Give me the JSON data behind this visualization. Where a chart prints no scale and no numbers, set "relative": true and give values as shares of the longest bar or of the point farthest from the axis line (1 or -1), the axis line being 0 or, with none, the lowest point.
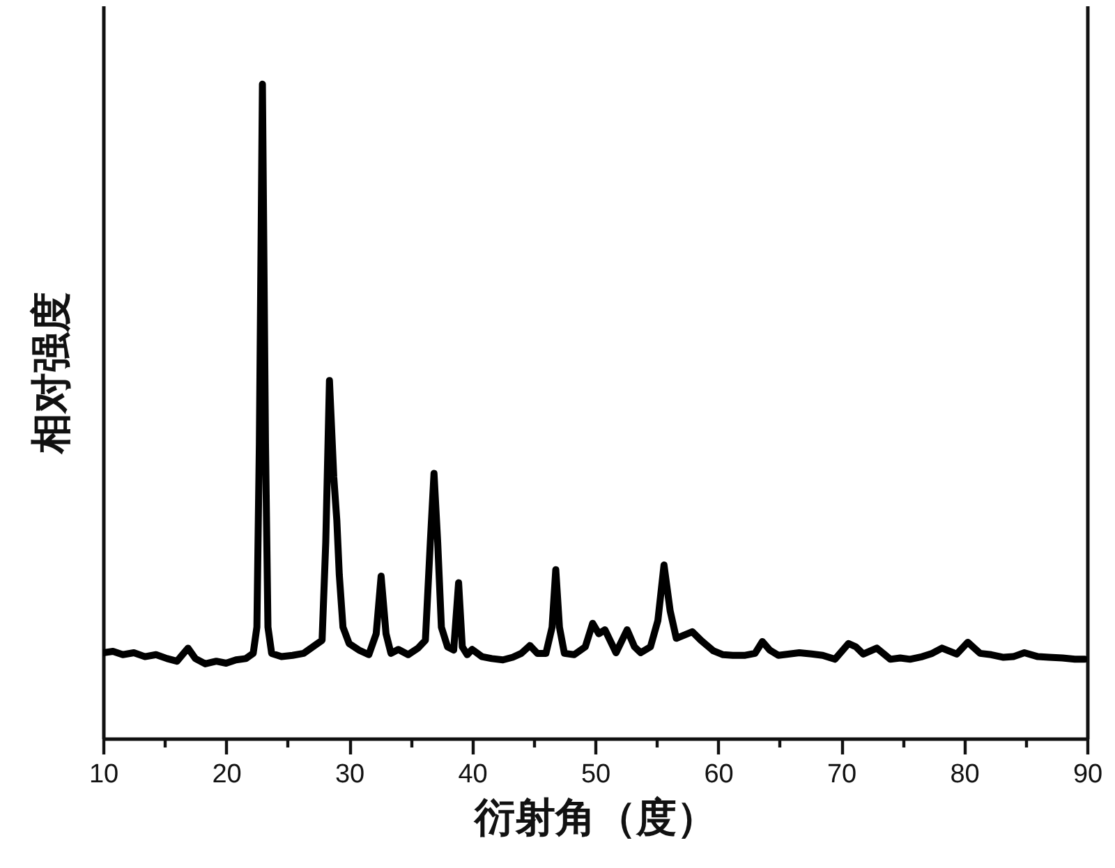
{
  "chart_data": {
    "type": "line",
    "relative": true,
    "xlabel": "衍射角（度）",
    "ylabel": "相对强度",
    "marker": "none",
    "line_style": "solid",
    "xlim": [
      10,
      90
    ],
    "xticks": [
      10,
      {
        "value": 15,
        "label": null
      },
      20,
      {
        "value": 25,
        "label": null
      },
      30,
      {
        "value": 35,
        "label": null
      },
      40,
      {
        "value": 45,
        "label": null
      },
      50,
      {
        "value": 55,
        "label": null
      },
      60,
      {
        "value": 65,
        "label": null
      },
      70,
      {
        "value": 75,
        "label": null
      },
      80,
      {
        "value": 85,
        "label": null
      },
      90
    ],
    "x": [
      10.0,
      10.8,
      11.6,
      12.5,
      13.4,
      14.3,
      15.2,
      16.0,
      16.9,
      17.5,
      18.3,
      19.2,
      20.0,
      20.8,
      21.6,
      22.2,
      22.5,
      22.7,
      22.95,
      23.2,
      23.4,
      23.7,
      24.5,
      25.4,
      26.3,
      27.2,
      27.8,
      28.1,
      28.4,
      28.75,
      29.0,
      29.2,
      29.5,
      30.0,
      30.8,
      31.6,
      32.2,
      32.6,
      33.0,
      33.4,
      34.0,
      34.8,
      35.6,
      36.2,
      36.6,
      36.9,
      37.2,
      37.5,
      38.0,
      38.5,
      38.9,
      39.2,
      39.6,
      40.0,
      40.8,
      41.6,
      42.5,
      43.3,
      44.0,
      44.7,
      45.3,
      46.0,
      46.5,
      46.8,
      47.1,
      47.5,
      48.3,
      49.2,
      49.8,
      50.3,
      50.8,
      51.7,
      52.6,
      53.2,
      53.7,
      54.5,
      55.1,
      55.6,
      56.1,
      56.6,
      57.9,
      58.6,
      59.6,
      60.4,
      61.2,
      62.2,
      63.0,
      63.6,
      64.2,
      64.9,
      65.8,
      66.6,
      67.6,
      68.5,
      69.5,
      70.6,
      71.2,
      71.8,
      72.9,
      74.0,
      74.8,
      75.6,
      76.6,
      77.4,
      78.2,
      79.4,
      80.3,
      81.3,
      82.2,
      83.2,
      84.0,
      84.9,
      86.0,
      86.9,
      88.0,
      89.0,
      89.8
    ],
    "series": [
      {
        "color": "#000000",
        "values": [
          0.131,
          0.133,
          0.128,
          0.131,
          0.125,
          0.128,
          0.122,
          0.118,
          0.138,
          0.122,
          0.114,
          0.118,
          0.115,
          0.12,
          0.122,
          0.13,
          0.17,
          0.45,
          1.0,
          0.45,
          0.17,
          0.13,
          0.125,
          0.127,
          0.13,
          0.142,
          0.15,
          0.3,
          0.547,
          0.4,
          0.333,
          0.25,
          0.17,
          0.145,
          0.135,
          0.128,
          0.16,
          0.248,
          0.16,
          0.13,
          0.136,
          0.128,
          0.138,
          0.15,
          0.3,
          0.405,
          0.3,
          0.17,
          0.14,
          0.135,
          0.238,
          0.14,
          0.128,
          0.136,
          0.125,
          0.122,
          0.12,
          0.124,
          0.13,
          0.142,
          0.13,
          0.13,
          0.17,
          0.258,
          0.17,
          0.13,
          0.128,
          0.14,
          0.176,
          0.16,
          0.166,
          0.131,
          0.166,
          0.14,
          0.131,
          0.14,
          0.18,
          0.265,
          0.195,
          0.153,
          0.163,
          0.15,
          0.134,
          0.128,
          0.127,
          0.127,
          0.13,
          0.148,
          0.135,
          0.127,
          0.129,
          0.131,
          0.129,
          0.127,
          0.121,
          0.145,
          0.14,
          0.129,
          0.138,
          0.121,
          0.123,
          0.121,
          0.125,
          0.13,
          0.138,
          0.129,
          0.147,
          0.13,
          0.128,
          0.124,
          0.125,
          0.131,
          0.125,
          0.124,
          0.123,
          0.121,
          0.121
        ]
      }
    ]
  }
}
